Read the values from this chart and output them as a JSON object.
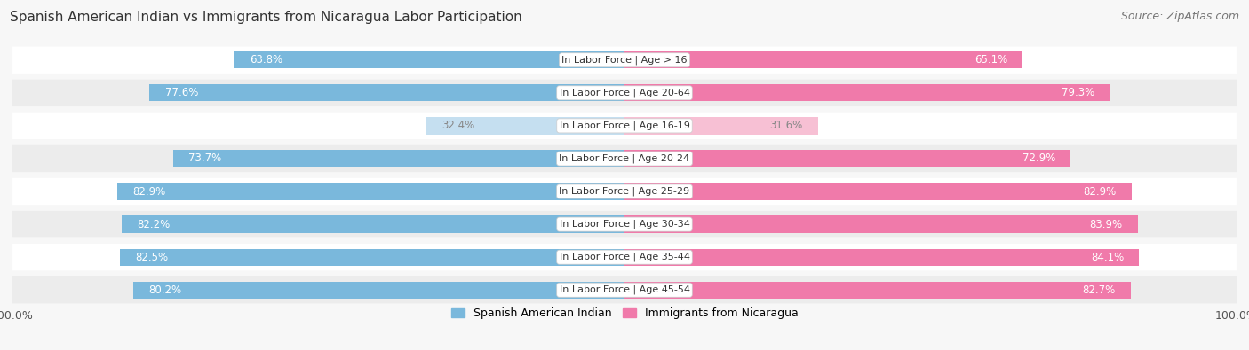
{
  "title": "Spanish American Indian vs Immigrants from Nicaragua Labor Participation",
  "source": "Source: ZipAtlas.com",
  "categories": [
    "In Labor Force | Age > 16",
    "In Labor Force | Age 20-64",
    "In Labor Force | Age 16-19",
    "In Labor Force | Age 20-24",
    "In Labor Force | Age 25-29",
    "In Labor Force | Age 30-34",
    "In Labor Force | Age 35-44",
    "In Labor Force | Age 45-54"
  ],
  "spanish_values": [
    63.8,
    77.6,
    32.4,
    73.7,
    82.9,
    82.2,
    82.5,
    80.2
  ],
  "nicaragua_values": [
    65.1,
    79.3,
    31.6,
    72.9,
    82.9,
    83.9,
    84.1,
    82.7
  ],
  "spanish_color": "#7ab8dc",
  "nicaragua_color": "#f07aaa",
  "spanish_light_color": "#c5dff0",
  "nicaragua_light_color": "#f7c0d4",
  "row_colors": [
    "#ffffff",
    "#ececec"
  ],
  "max_value": 100.0,
  "label_spanish": "Spanish American Indian",
  "label_nicaragua": "Immigrants from Nicaragua",
  "title_fontsize": 11,
  "source_fontsize": 9,
  "tick_fontsize": 9,
  "bar_label_fontsize": 8.5,
  "cat_label_fontsize": 8.0,
  "legend_fontsize": 9
}
